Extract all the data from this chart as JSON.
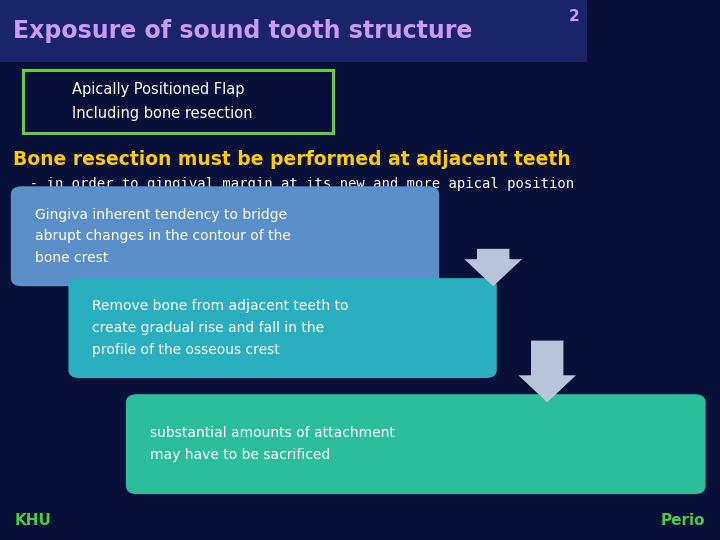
{
  "bg_color": "#08103a",
  "title_text": "Exposure of sound tooth structure",
  "title_superscript": "2",
  "title_color": "#cc99ff",
  "title_bg_color": "#1a2468",
  "subtitle_box_text": "Apically Positioned Flap\nIncluding bone resection",
  "subtitle_box_color": "#ffffff",
  "subtitle_box_border": "#66cc44",
  "heading_text": "Bone resection must be performed at adjacent teeth",
  "heading_color": "#ffcc00",
  "subheading_text": "  - in order to gingival margin at its new and more apical position",
  "subheading_color": "#ffffff",
  "box1_text": "Gingiva inherent tendency to bridge\nabrupt changes in the contour of the\nbone crest",
  "box1_color": "#5b8fc9",
  "box2_text": "Remove bone from adjacent teeth to\ncreate gradual rise and fall in the\nprofile of the osseous crest",
  "box2_color": "#2aafc0",
  "box3_text": "substantial amounts of attachment\nmay have to be sacrificed",
  "box3_color": "#2abf9a",
  "arrow_color": "#b8c4d8",
  "khu_text": "KHU",
  "khu_color": "#44cc44",
  "perio_text": "Perio",
  "perio_color": "#44cc44",
  "text_color": "#ffffff"
}
